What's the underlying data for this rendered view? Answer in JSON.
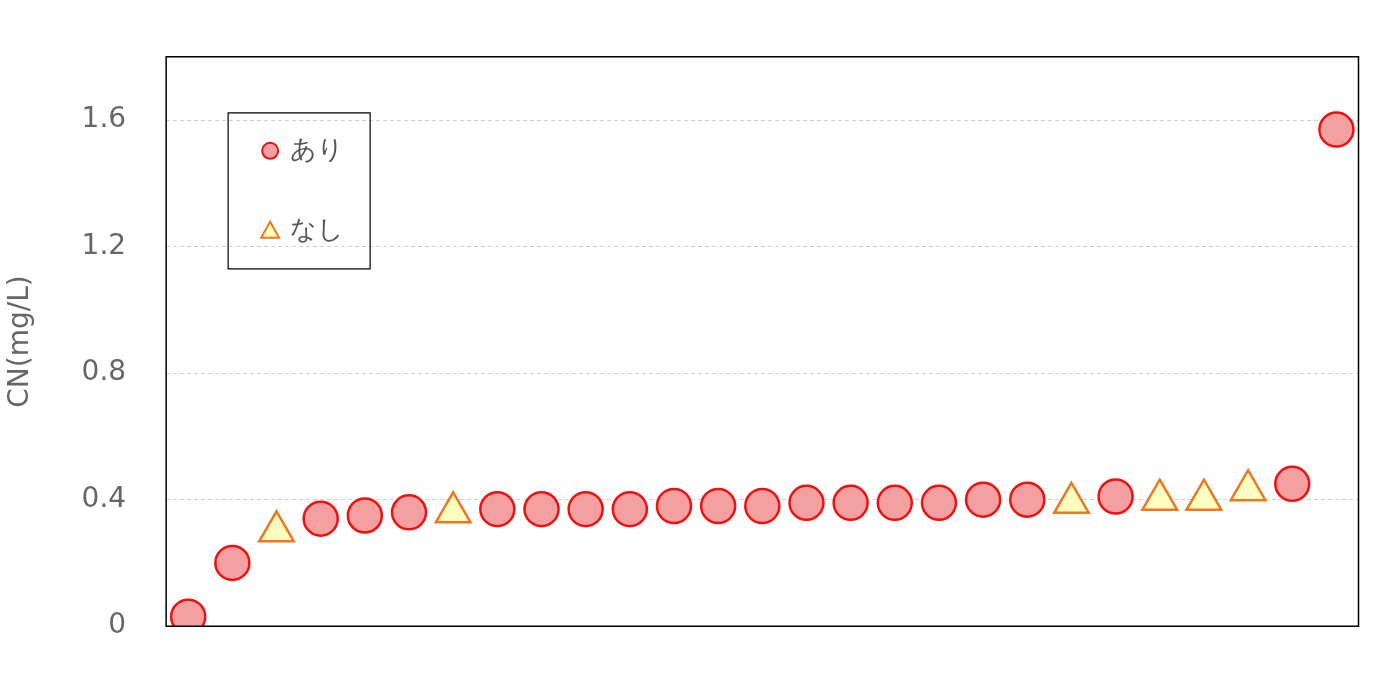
{
  "chart_data": {
    "type": "scatter",
    "ylabel": "CN(mg/L)",
    "categories": [
      null,
      null,
      null,
      null,
      null,
      null,
      null,
      null,
      null,
      null,
      null,
      null,
      null,
      null,
      null,
      null,
      null,
      null,
      null,
      null,
      null,
      null,
      null,
      null,
      null,
      null,
      null
    ],
    "series": [
      {
        "name": "あり",
        "color": "#f4a0a0",
        "marker": "circle",
        "values": [
          0.03,
          0.2,
          null,
          0.34,
          0.35,
          0.36,
          null,
          0.37,
          0.37,
          0.37,
          0.37,
          0.38,
          0.38,
          0.38,
          0.39,
          0.39,
          0.39,
          0.39,
          0.4,
          0.4,
          null,
          0.41,
          null,
          null,
          null,
          0.45,
          1.57
        ]
      },
      {
        "name": "なし",
        "color": "#ffffc0",
        "marker": "triangle",
        "values": [
          null,
          null,
          0.3,
          null,
          null,
          null,
          0.36,
          null,
          null,
          null,
          null,
          null,
          null,
          null,
          null,
          null,
          null,
          null,
          null,
          null,
          0.39,
          null,
          0.4,
          0.4,
          0.43,
          null,
          null
        ]
      }
    ],
    "ylim": [
      0,
      1.8
    ],
    "yticks": [
      0,
      0.4,
      0.8,
      1.2,
      1.6
    ],
    "grid": "y",
    "legend": "top left"
  }
}
